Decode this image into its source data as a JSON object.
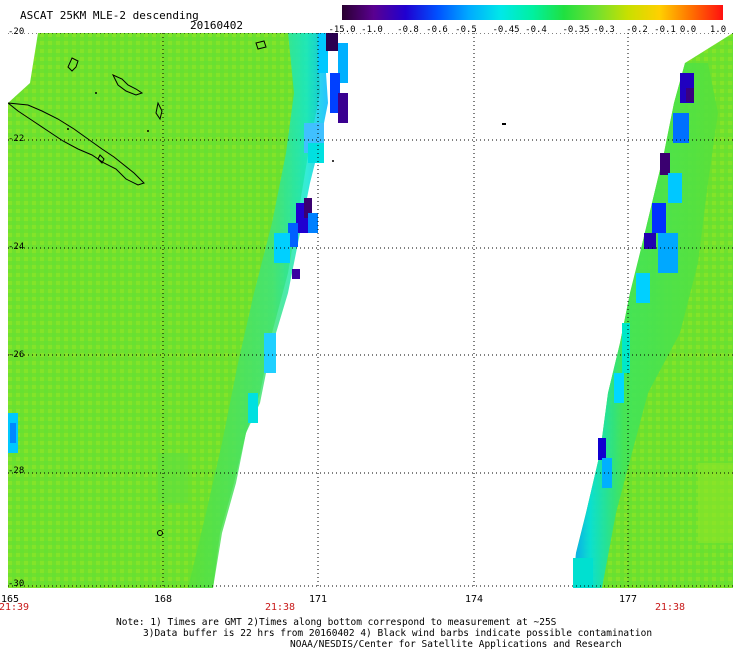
{
  "header": {
    "title": "ASCAT 25KM MLE-2 descending",
    "date": "20160402"
  },
  "colorbar": {
    "labels": [
      "-15.0",
      "-1.0",
      "-0.8",
      "-0.6",
      "-0.5",
      "-0.45",
      "-0.4",
      "-0.35",
      "-0.3",
      "-0.2",
      "-0.1",
      "0.0",
      "1.0"
    ],
    "colors": [
      "#2a0030",
      "#5a0090",
      "#2000d0",
      "#0050ff",
      "#00aaff",
      "#00e8e8",
      "#00f0a0",
      "#20e040",
      "#70e030",
      "#c8e000",
      "#ffd000",
      "#ff7000",
      "#ff1010"
    ]
  },
  "map": {
    "lon_labels": [
      "165",
      "168",
      "171",
      "174",
      "177"
    ],
    "lat_labels": [
      "-20",
      "-22",
      "-24",
      "-26",
      "-28",
      "-30"
    ],
    "time_labels": [
      "21:39",
      "21:38",
      "21:38"
    ]
  },
  "footer": {
    "note_line1": "Note: 1) Times are GMT 2)Times along bottom correspond to measurement at ~25S",
    "note_line2": "3)Data buffer is 22 hrs from 20160402 4) Black wind barbs indicate possible contamination",
    "credit": "NOAA/NESDIS/Center for Satellite Applications and Research"
  }
}
